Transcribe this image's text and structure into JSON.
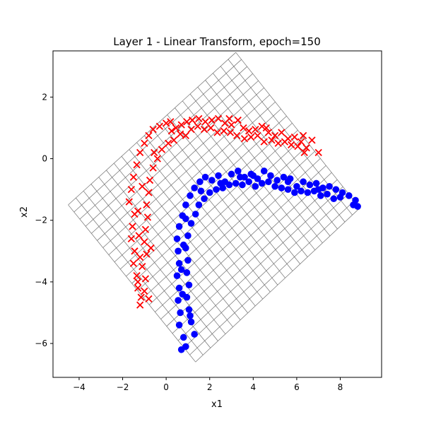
{
  "chart_data": {
    "type": "scatter",
    "title": "Layer 1 - Linear Transform, epoch=150",
    "xlabel": "x1",
    "ylabel": "x2",
    "xlim": [
      -5.2,
      9.9
    ],
    "ylim": [
      -7.1,
      3.5
    ],
    "x_ticks": [
      -4,
      -2,
      0,
      2,
      4,
      6,
      8
    ],
    "y_ticks": [
      -6,
      -4,
      -2,
      0,
      2
    ],
    "grid_on": false,
    "mesh": {
      "corners": {
        "left": [
          -4.5,
          -1.5
        ],
        "top": [
          3.2,
          3.45
        ],
        "right": [
          8.9,
          -1.6
        ],
        "bottom": [
          1.35,
          -6.6
        ]
      },
      "divisions": 22,
      "color": "#707070"
    },
    "series": [
      {
        "marker": "x",
        "color": "#ff0000",
        "points": [
          [
            -1.7,
            -1.4
          ],
          [
            -1.6,
            -1.0
          ],
          [
            -1.5,
            -0.6
          ],
          [
            -1.35,
            -0.2
          ],
          [
            -1.2,
            0.2
          ],
          [
            -1.0,
            0.5
          ],
          [
            -0.8,
            0.75
          ],
          [
            -0.6,
            0.95
          ],
          [
            -0.3,
            1.05
          ],
          [
            0.0,
            1.15
          ],
          [
            0.2,
            1.2
          ],
          [
            0.45,
            1.0
          ],
          [
            0.7,
            1.1
          ],
          [
            0.95,
            1.2
          ],
          [
            1.2,
            1.25
          ],
          [
            1.5,
            1.3
          ],
          [
            1.8,
            1.2
          ],
          [
            2.1,
            1.25
          ],
          [
            2.4,
            1.3
          ],
          [
            2.7,
            1.15
          ],
          [
            3.0,
            1.1
          ],
          [
            3.3,
            1.25
          ],
          [
            3.55,
            1.0
          ],
          [
            3.8,
            0.9
          ],
          [
            4.1,
            0.95
          ],
          [
            4.4,
            1.05
          ],
          [
            4.7,
            0.85
          ],
          [
            5.0,
            0.75
          ],
          [
            5.3,
            0.85
          ],
          [
            5.6,
            0.65
          ],
          [
            5.9,
            0.7
          ],
          [
            6.2,
            0.55
          ],
          [
            6.45,
            0.35
          ],
          [
            6.7,
            0.6
          ],
          [
            7.0,
            0.2
          ],
          [
            -1.45,
            -1.8
          ],
          [
            -1.55,
            -2.2
          ],
          [
            -1.6,
            -2.6
          ],
          [
            -1.45,
            -3.0
          ],
          [
            -1.5,
            -3.4
          ],
          [
            -1.35,
            -3.8
          ],
          [
            -1.3,
            -4.2
          ],
          [
            -1.15,
            -4.5
          ],
          [
            -1.0,
            -4.3
          ],
          [
            -0.95,
            -3.9
          ],
          [
            -1.1,
            -3.5
          ],
          [
            -0.9,
            -3.1
          ],
          [
            -1.0,
            -2.7
          ],
          [
            -0.95,
            -2.3
          ],
          [
            -0.85,
            -1.9
          ],
          [
            -0.9,
            -1.5
          ],
          [
            -0.8,
            -1.1
          ],
          [
            -0.75,
            -0.7
          ],
          [
            -0.6,
            -0.3
          ],
          [
            -0.4,
            0.0
          ],
          [
            -0.2,
            0.3
          ],
          [
            0.1,
            0.5
          ],
          [
            0.35,
            0.6
          ],
          [
            0.65,
            0.8
          ],
          [
            0.9,
            0.75
          ],
          [
            1.15,
            0.95
          ],
          [
            1.45,
            1.05
          ],
          [
            1.75,
            0.95
          ],
          [
            2.05,
            1.0
          ],
          [
            2.35,
            0.85
          ],
          [
            2.65,
            0.9
          ],
          [
            2.95,
            0.85
          ],
          [
            3.25,
            0.75
          ],
          [
            3.6,
            0.65
          ],
          [
            3.9,
            0.7
          ],
          [
            4.2,
            0.75
          ],
          [
            4.5,
            0.55
          ],
          [
            4.85,
            0.6
          ],
          [
            5.15,
            0.5
          ],
          [
            5.45,
            0.55
          ],
          [
            5.75,
            0.45
          ],
          [
            6.05,
            0.4
          ],
          [
            6.35,
            0.2
          ],
          [
            -1.2,
            -4.75
          ],
          [
            -0.8,
            -4.55
          ],
          [
            -1.3,
            -4.0
          ],
          [
            -1.2,
            -3.2
          ],
          [
            -1.25,
            -2.5
          ],
          [
            -1.3,
            -1.7
          ],
          [
            -1.1,
            -0.9
          ],
          [
            -0.55,
            0.2
          ],
          [
            0.25,
            0.9
          ],
          [
            2.9,
            1.3
          ],
          [
            4.6,
            1.0
          ],
          [
            6.3,
            0.75
          ],
          [
            -0.7,
            -2.9
          ]
        ]
      },
      {
        "marker": "o",
        "color": "#0000ff",
        "points": [
          [
            0.7,
            -6.2
          ],
          [
            0.8,
            -5.8
          ],
          [
            0.6,
            -5.4
          ],
          [
            0.65,
            -5.0
          ],
          [
            0.55,
            -4.6
          ],
          [
            0.6,
            -4.2
          ],
          [
            0.5,
            -3.8
          ],
          [
            0.6,
            -3.4
          ],
          [
            0.55,
            -3.0
          ],
          [
            0.5,
            -2.6
          ],
          [
            0.6,
            -2.2
          ],
          [
            0.75,
            -1.85
          ],
          [
            0.9,
            -1.5
          ],
          [
            1.1,
            -1.2
          ],
          [
            1.3,
            -0.95
          ],
          [
            1.55,
            -0.75
          ],
          [
            1.8,
            -0.6
          ],
          [
            2.1,
            -0.7
          ],
          [
            2.4,
            -0.55
          ],
          [
            2.7,
            -0.75
          ],
          [
            3.0,
            -0.5
          ],
          [
            3.3,
            -0.4
          ],
          [
            3.6,
            -0.6
          ],
          [
            3.9,
            -0.5
          ],
          [
            4.2,
            -0.65
          ],
          [
            4.5,
            -0.4
          ],
          [
            4.8,
            -0.55
          ],
          [
            5.1,
            -0.7
          ],
          [
            5.4,
            -0.6
          ],
          [
            5.7,
            -0.65
          ],
          [
            6.0,
            -0.9
          ],
          [
            6.3,
            -0.75
          ],
          [
            6.6,
            -0.85
          ],
          [
            6.9,
            -0.8
          ],
          [
            7.2,
            -0.95
          ],
          [
            7.5,
            -0.9
          ],
          [
            7.8,
            -1.0
          ],
          [
            8.1,
            -1.1
          ],
          [
            8.4,
            -1.2
          ],
          [
            8.7,
            -1.35
          ],
          [
            8.8,
            -1.55
          ],
          [
            1.3,
            -5.7
          ],
          [
            1.15,
            -5.3
          ],
          [
            1.05,
            -4.9
          ],
          [
            0.95,
            -4.5
          ],
          [
            1.05,
            -4.1
          ],
          [
            0.95,
            -3.7
          ],
          [
            1.0,
            -3.3
          ],
          [
            0.9,
            -2.9
          ],
          [
            1.0,
            -2.5
          ],
          [
            1.15,
            -2.1
          ],
          [
            1.35,
            -1.8
          ],
          [
            1.5,
            -1.5
          ],
          [
            1.75,
            -1.3
          ],
          [
            2.0,
            -1.1
          ],
          [
            2.3,
            -1.0
          ],
          [
            2.6,
            -0.95
          ],
          [
            2.9,
            -0.85
          ],
          [
            3.2,
            -0.8
          ],
          [
            3.5,
            -0.85
          ],
          [
            3.8,
            -0.75
          ],
          [
            4.1,
            -0.9
          ],
          [
            4.4,
            -0.8
          ],
          [
            4.7,
            -0.75
          ],
          [
            5.0,
            -0.9
          ],
          [
            5.3,
            -0.95
          ],
          [
            5.6,
            -1.0
          ],
          [
            5.9,
            -1.1
          ],
          [
            6.2,
            -1.05
          ],
          [
            6.5,
            -1.1
          ],
          [
            6.8,
            -1.05
          ],
          [
            7.1,
            -1.2
          ],
          [
            7.4,
            -1.15
          ],
          [
            7.7,
            -1.3
          ],
          [
            8.0,
            -1.25
          ],
          [
            8.6,
            -1.5
          ],
          [
            0.75,
            -4.4
          ],
          [
            0.7,
            -3.6
          ],
          [
            0.8,
            -2.8
          ],
          [
            0.9,
            -1.95
          ],
          [
            1.6,
            -1.05
          ],
          [
            2.5,
            -0.8
          ],
          [
            3.4,
            -0.6
          ],
          [
            4.0,
            -0.55
          ],
          [
            5.6,
            -0.75
          ],
          [
            7.0,
            -1.0
          ],
          [
            0.9,
            -6.1
          ],
          [
            1.1,
            -5.1
          ]
        ]
      }
    ]
  }
}
